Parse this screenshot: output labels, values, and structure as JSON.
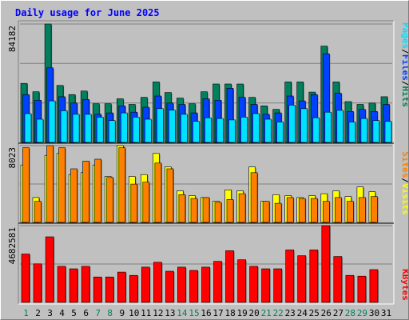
{
  "title": "Daily usage for June 2025",
  "colors": {
    "background": "#c0c0c0",
    "title": "#0000ff",
    "hits": "#00805c",
    "files": "#0040ff",
    "pages": "#00e0ff",
    "visits": "#ffff00",
    "sites": "#ff8000",
    "kbytes": "#ff0000",
    "weekday_label": "#000000",
    "weekend_label": "#00805c"
  },
  "legend": {
    "pages": "Pages",
    "files": "Files",
    "hits": "Hits",
    "sep": "/",
    "sites": "Sites",
    "visits": "Visits",
    "kbytes": "KBytes"
  },
  "chart_data": {
    "type": "bar",
    "title": "Daily usage for June 2025",
    "x": [
      "1",
      "2",
      "3",
      "4",
      "5",
      "6",
      "7",
      "8",
      "9",
      "10",
      "11",
      "12",
      "13",
      "14",
      "15",
      "16",
      "17",
      "18",
      "19",
      "20",
      "21",
      "22",
      "23",
      "24",
      "25",
      "26",
      "27",
      "28",
      "29",
      "30",
      "31"
    ],
    "weekend_days": [
      "1",
      "7",
      "8",
      "14",
      "15",
      "21",
      "22",
      "28",
      "29"
    ],
    "panels": [
      {
        "name": "top",
        "max_label": "84182",
        "ymax": 84182,
        "series": [
          {
            "name": "Hits",
            "values": [
              42000,
              36000,
              84182,
              40500,
              34000,
              36500,
              27500,
              27500,
              31000,
              27000,
              32000,
              43000,
              35500,
              31500,
              27500,
              36000,
              41500,
              41500,
              41500,
              32000,
              26000,
              23500,
              43000,
              43000,
              35800,
              68500,
              43000,
              29000,
              27000,
              28000,
              32500
            ]
          },
          {
            "name": "Files",
            "values": [
              34000,
              30000,
              53000,
              32500,
              28000,
              30500,
              20000,
              21000,
              26000,
              21500,
              25000,
              33000,
              28000,
              27000,
              21000,
              31000,
              30000,
              38500,
              32000,
              27000,
              20000,
              21000,
              33000,
              29500,
              34000,
              63000,
              35000,
              22000,
              23500,
              22000,
              27000
            ]
          },
          {
            "name": "Pages",
            "values": [
              20500,
              16500,
              29500,
              22500,
              20000,
              20000,
              18000,
              15500,
              21000,
              18000,
              16500,
              24000,
              23000,
              20000,
              15000,
              17500,
              17000,
              16000,
              18000,
              20500,
              16500,
              14500,
              26500,
              24000,
              17500,
              21500,
              22800,
              14500,
              17000,
              15500,
              15000
            ]
          }
        ]
      },
      {
        "name": "middle",
        "max_label": "8023",
        "ymax": 8023,
        "series": [
          {
            "name": "Visits",
            "values": [
              6000,
              2600,
              7000,
              7200,
              5000,
              5200,
              6000,
              4800,
              8023,
              4800,
              5000,
              7200,
              5800,
              3300,
              2800,
              2600,
              2200,
              3400,
              3300,
              5800,
              2200,
              2900,
              2800,
              2600,
              2800,
              3000,
              3300,
              2700,
              3700,
              3200,
              0
            ]
          },
          {
            "name": "Sites",
            "values": [
              7800,
              2200,
              8023,
              7800,
              5600,
              6400,
              6600,
              4700,
              7800,
              4000,
              4200,
              6200,
              5600,
              2900,
              2500,
              2600,
              2100,
              2400,
              3000,
              5200,
              2200,
              2000,
              2600,
              2500,
              2500,
              2200,
              2600,
              2200,
              2600,
              2700,
              0
            ]
          }
        ]
      },
      {
        "name": "bottom",
        "max_label": "4682581",
        "ymax": 4682581,
        "series": [
          {
            "name": "KBytes",
            "values": [
              2950000,
              2350000,
              4000000,
              2200000,
              2050000,
              2200000,
              1550000,
              1550000,
              1850000,
              1650000,
              2150000,
              2450000,
              1900000,
              2150000,
              1950000,
              2150000,
              2500000,
              3150000,
              2600000,
              2200000,
              2050000,
              2050000,
              3200000,
              2850000,
              3200000,
              4682581,
              2800000,
              1650000,
              1600000,
              2000000,
              0
            ]
          }
        ]
      }
    ]
  }
}
